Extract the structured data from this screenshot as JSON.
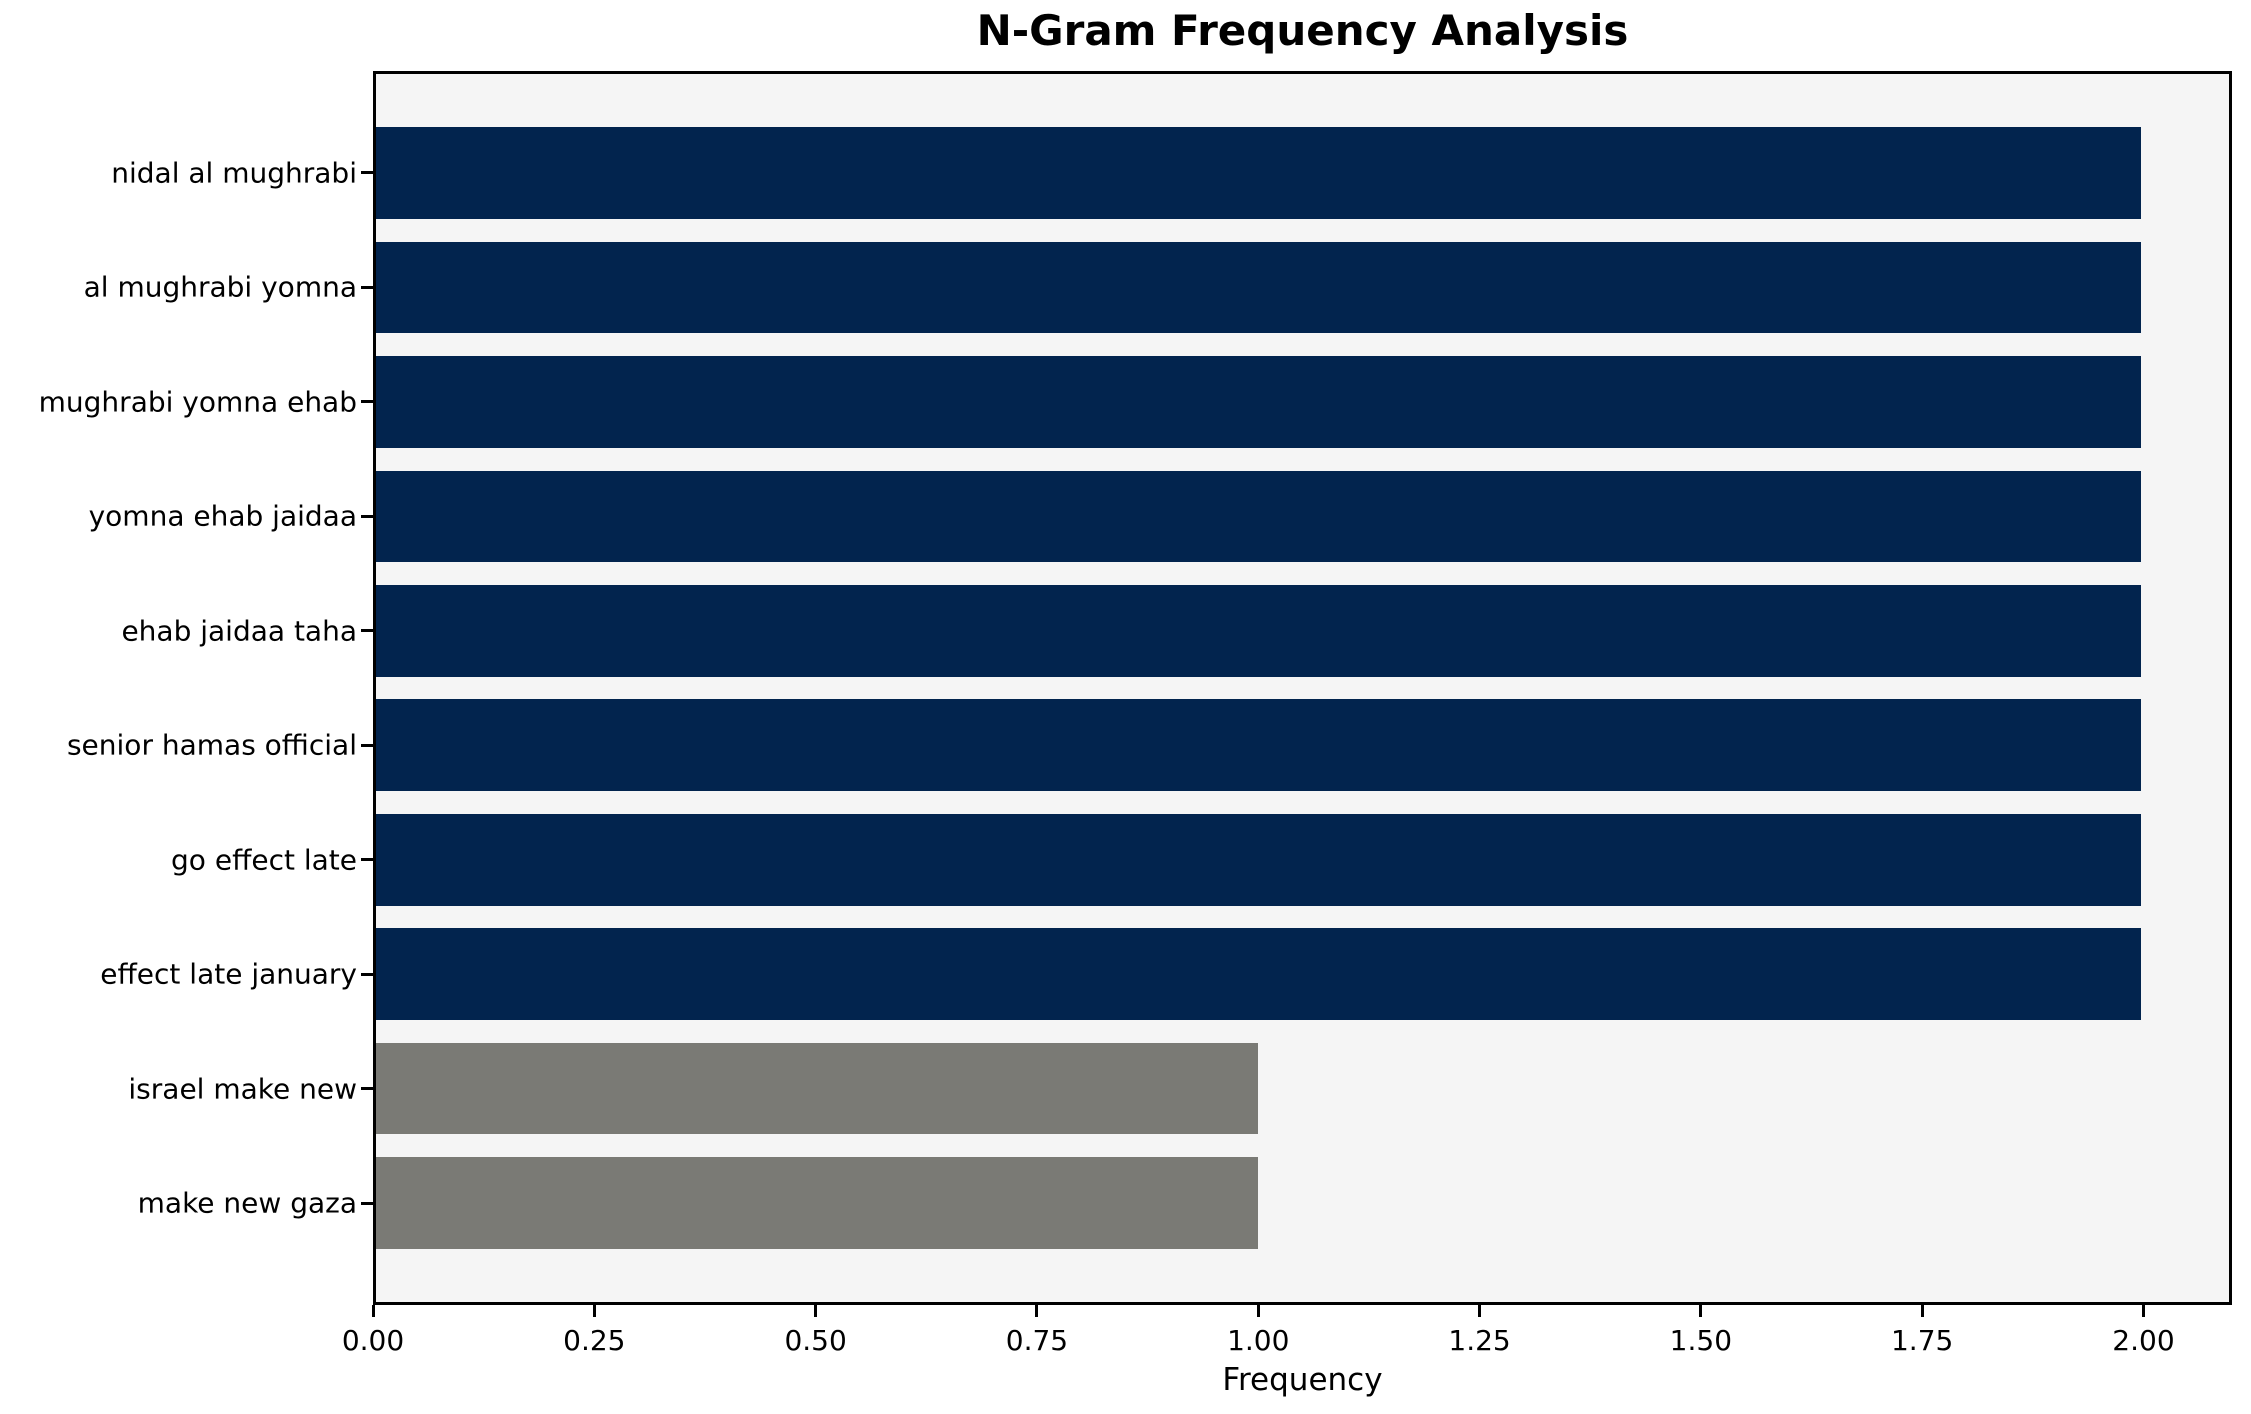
{
  "chart_data": {
    "type": "bar",
    "orientation": "horizontal",
    "title": "N-Gram Frequency Analysis",
    "xlabel": "Frequency",
    "categories": [
      "nidal al mughrabi",
      "al mughrabi yomna",
      "mughrabi yomna ehab",
      "yomna ehab jaidaa",
      "ehab jaidaa taha",
      "senior hamas official",
      "go effect late",
      "effect late january",
      "israel make new",
      "make new gaza"
    ],
    "values": [
      2,
      2,
      2,
      2,
      2,
      2,
      2,
      2,
      1,
      1
    ],
    "bar_colors": [
      "#02244e",
      "#02244e",
      "#02244e",
      "#02244e",
      "#02244e",
      "#02244e",
      "#02244e",
      "#02244e",
      "#7a7a75",
      "#7a7a75"
    ],
    "xlim": [
      0,
      2.1
    ],
    "xtick_values": [
      0,
      0.25,
      0.5,
      0.75,
      1.0,
      1.25,
      1.5,
      1.75,
      2.0
    ],
    "xtick_labels": [
      "0.00",
      "0.25",
      "0.50",
      "0.75",
      "1.00",
      "1.25",
      "1.50",
      "1.75",
      "2.00"
    ],
    "grid": false,
    "legend": null,
    "colors": {
      "plot_background": "#f5f5f5",
      "axis": "#000000",
      "high_frequency_bar": "#02244e",
      "low_frequency_bar": "#7a7a75"
    }
  }
}
